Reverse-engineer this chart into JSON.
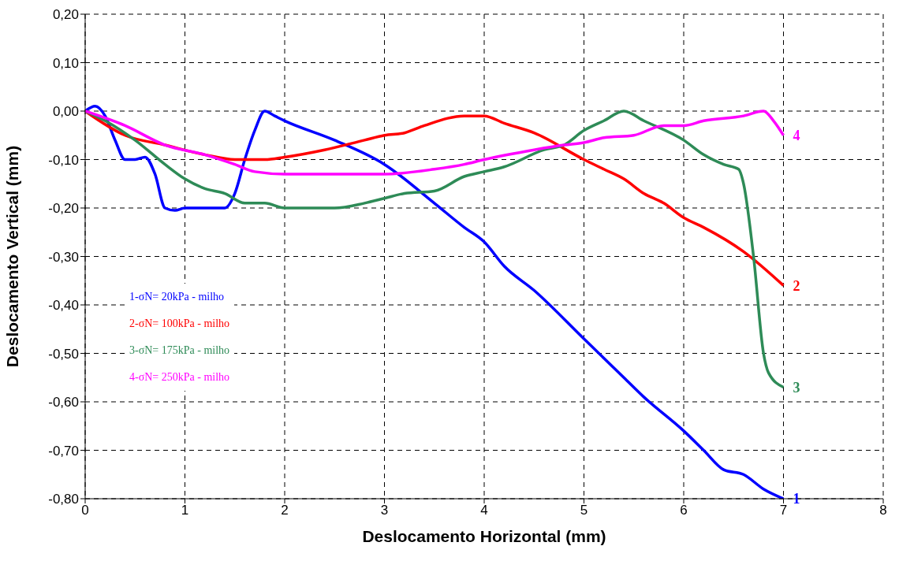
{
  "chart_data": {
    "type": "line",
    "xlabel": "Deslocamento Horizontal (mm)",
    "ylabel": "Deslocamento Vertical (mm)",
    "xlim": [
      0,
      8
    ],
    "xticks": [
      0,
      1,
      2,
      3,
      4,
      5,
      6,
      7,
      8
    ],
    "ylim": [
      -0.8,
      0.2
    ],
    "yticks": [
      {
        "value": 0.2,
        "label": "0,20"
      },
      {
        "value": 0.1,
        "label": "0,10"
      },
      {
        "value": 0,
        "label": "0,00"
      },
      {
        "value": -0.1,
        "label": "-0,10"
      },
      {
        "value": -0.2,
        "label": "-0,20"
      },
      {
        "value": -0.3,
        "label": "-0,30"
      },
      {
        "value": -0.4,
        "label": "-0,40"
      },
      {
        "value": -0.5,
        "label": "-0,50"
      },
      {
        "value": -0.6,
        "label": "-0,60"
      },
      {
        "value": -0.7,
        "label": "-0,70"
      },
      {
        "value": -0.8,
        "label": "-0,80"
      }
    ],
    "grid": true,
    "legend": "left",
    "marker": "none",
    "line_style": "solid",
    "series": [
      {
        "name": "1-σN= 20kPa - milho",
        "color": "#0000ff",
        "x": [
          0,
          0.1,
          0.2,
          0.3,
          0.4,
          0.5,
          0.6,
          0.7,
          0.8,
          0.9,
          1,
          1.2,
          1.4,
          1.5,
          1.6,
          1.7,
          1.8,
          1.9,
          2,
          2.5,
          3,
          3.5,
          3.8,
          4,
          4.2,
          4.5,
          5,
          5.4,
          5.6,
          6,
          6.2,
          6.4,
          6.6,
          6.8,
          7
        ],
        "values": [
          0,
          0.01,
          -0.01,
          -0.06,
          -0.1,
          -0.1,
          -0.095,
          -0.13,
          -0.2,
          -0.205,
          -0.2,
          -0.2,
          -0.2,
          -0.17,
          -0.1,
          -0.04,
          0,
          -0.01,
          -0.02,
          -0.06,
          -0.11,
          -0.19,
          -0.24,
          -0.27,
          -0.32,
          -0.37,
          -0.47,
          -0.55,
          -0.59,
          -0.66,
          -0.7,
          -0.74,
          -0.75,
          -0.78,
          -0.8
        ]
      },
      {
        "name": "2-σN= 100kPa - milho",
        "color": "#ff0000",
        "x": [
          0,
          0.4,
          0.8,
          1.2,
          1.5,
          1.8,
          2,
          2.4,
          2.8,
          3,
          3.2,
          3.4,
          3.8,
          4,
          4.2,
          4.5,
          5,
          5.2,
          5.4,
          5.6,
          5.8,
          6,
          6.2,
          6.6,
          7
        ],
        "values": [
          0,
          -0.05,
          -0.07,
          -0.09,
          -0.1,
          -0.1,
          -0.095,
          -0.08,
          -0.06,
          -0.05,
          -0.045,
          -0.03,
          -0.01,
          -0.01,
          -0.025,
          -0.045,
          -0.1,
          -0.12,
          -0.14,
          -0.17,
          -0.19,
          -0.22,
          -0.24,
          -0.29,
          -0.36
        ]
      },
      {
        "name": "3-σN= 175kPa - milho",
        "color": "#2e8b57",
        "x": [
          0,
          0.2,
          0.5,
          0.8,
          1,
          1.2,
          1.4,
          1.6,
          1.8,
          2,
          2.5,
          2.8,
          3,
          3.2,
          3.5,
          3.8,
          4,
          4.2,
          4.6,
          4.8,
          5,
          5.2,
          5.4,
          5.6,
          6,
          6.2,
          6.4,
          6.55,
          6.6,
          6.7,
          6.8,
          6.85,
          7
        ],
        "values": [
          0,
          -0.02,
          -0.06,
          -0.11,
          -0.14,
          -0.16,
          -0.17,
          -0.19,
          -0.19,
          -0.2,
          -0.2,
          -0.19,
          -0.18,
          -0.17,
          -0.165,
          -0.135,
          -0.125,
          -0.115,
          -0.08,
          -0.07,
          -0.04,
          -0.02,
          0,
          -0.02,
          -0.06,
          -0.09,
          -0.11,
          -0.12,
          -0.15,
          -0.3,
          -0.5,
          -0.54,
          -0.57
        ]
      },
      {
        "name": "4-σN= 250kPa - milho",
        "color": "#ff00ff",
        "x": [
          0,
          0.4,
          0.8,
          1.2,
          1.5,
          1.7,
          2,
          3,
          3.5,
          3.8,
          4,
          4.5,
          4.8,
          5,
          5.2,
          5.5,
          5.8,
          6,
          6.2,
          6.6,
          6.8,
          6.9,
          7
        ],
        "values": [
          0,
          -0.03,
          -0.07,
          -0.09,
          -0.11,
          -0.125,
          -0.13,
          -0.13,
          -0.12,
          -0.11,
          -0.1,
          -0.08,
          -0.07,
          -0.065,
          -0.055,
          -0.05,
          -0.03,
          -0.03,
          -0.02,
          -0.01,
          0,
          -0.02,
          -0.05
        ]
      }
    ],
    "annotations": [
      "1",
      "2",
      "3",
      "4"
    ]
  }
}
